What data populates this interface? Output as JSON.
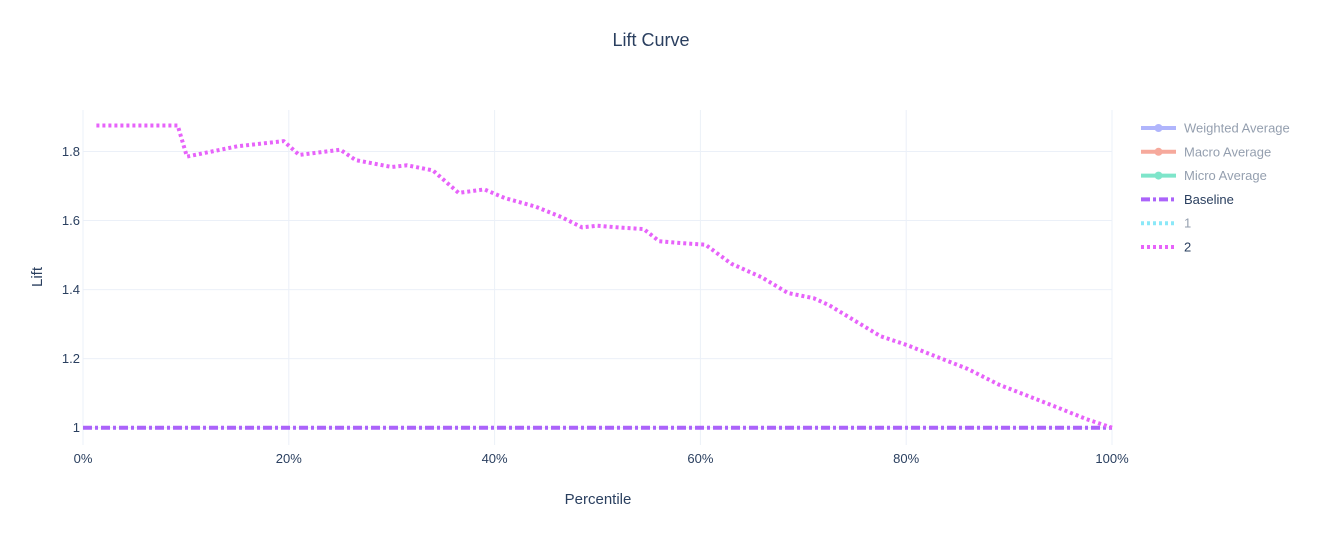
{
  "chart_data": {
    "type": "line",
    "title": "Lift Curve",
    "xlabel": "Percentile",
    "ylabel": "Lift",
    "xlim": [
      0,
      100
    ],
    "ylim": [
      0.95,
      1.92
    ],
    "x_ticks": [
      {
        "value": 0,
        "label": "0%"
      },
      {
        "value": 20,
        "label": "20%"
      },
      {
        "value": 40,
        "label": "40%"
      },
      {
        "value": 60,
        "label": "60%"
      },
      {
        "value": 80,
        "label": "80%"
      },
      {
        "value": 100,
        "label": "100%"
      }
    ],
    "y_ticks": [
      {
        "value": 1,
        "label": "1"
      },
      {
        "value": 1.2,
        "label": "1.2"
      },
      {
        "value": 1.4,
        "label": "1.4"
      },
      {
        "value": 1.6,
        "label": "1.6"
      },
      {
        "value": 1.8,
        "label": "1.8"
      }
    ],
    "grid": true,
    "legend_position": "right",
    "series": [
      {
        "name": "Weighted Average",
        "color": "#636efa",
        "style": "solid-markers",
        "visible": false,
        "x": [],
        "y": []
      },
      {
        "name": "Macro Average",
        "color": "#ef553b",
        "style": "solid-markers",
        "visible": false,
        "x": [],
        "y": []
      },
      {
        "name": "Micro Average",
        "color": "#00cc96",
        "style": "solid-markers",
        "visible": false,
        "x": [],
        "y": []
      },
      {
        "name": "Baseline",
        "color": "#ab63fa",
        "style": "dashdot",
        "visible": true,
        "x": [
          0,
          100
        ],
        "y": [
          1,
          1
        ]
      },
      {
        "name": "1",
        "color": "#19d3f3",
        "style": "dot",
        "visible": false,
        "x": [],
        "y": []
      },
      {
        "name": "2",
        "color": "#e763fa",
        "style": "dot",
        "visible": true,
        "x": [
          1.3,
          9.2,
          10.1,
          15,
          19.5,
          21,
          25,
          26.5,
          30,
          31.5,
          34,
          36.5,
          39,
          41,
          44,
          46.5,
          48.5,
          50,
          52,
          54.5,
          56,
          58,
          60.5,
          63,
          66,
          68.5,
          71,
          72.5,
          75,
          77.5,
          80,
          83,
          86,
          89,
          92,
          95,
          97.5,
          100
        ],
        "y": [
          1.875,
          1.875,
          1.785,
          1.815,
          1.83,
          1.79,
          1.805,
          1.775,
          1.755,
          1.76,
          1.745,
          1.68,
          1.69,
          1.665,
          1.64,
          1.61,
          1.58,
          1.585,
          1.58,
          1.575,
          1.54,
          1.535,
          1.53,
          1.475,
          1.435,
          1.39,
          1.375,
          1.355,
          1.31,
          1.265,
          1.24,
          1.205,
          1.17,
          1.125,
          1.09,
          1.055,
          1.025,
          1.0
        ]
      }
    ]
  }
}
